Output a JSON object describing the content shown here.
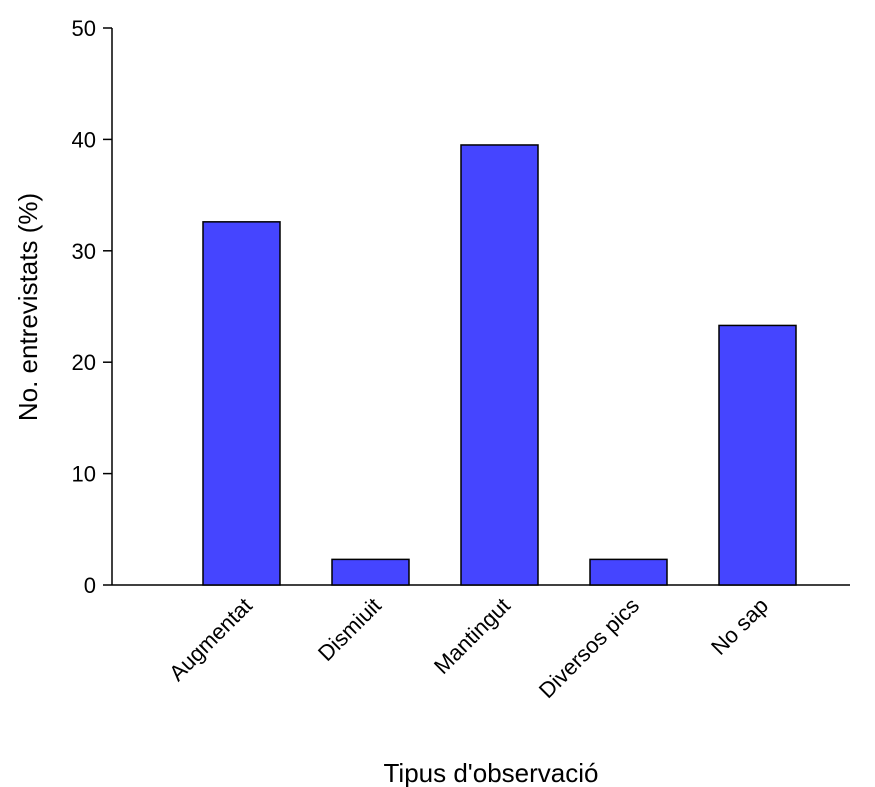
{
  "chart_data": {
    "type": "bar",
    "xlabel": "Tipus d'observació",
    "ylabel": "No. entrevistats (%)",
    "ylim": [
      0,
      50
    ],
    "yticks": [
      0,
      10,
      20,
      30,
      40,
      50
    ],
    "categories": [
      "Augmentat",
      "Dismiuit",
      "Mantingut",
      "Diversos pics",
      "No sap"
    ],
    "values": [
      32.6,
      2.3,
      39.5,
      2.3,
      23.3
    ],
    "bar_color": "#4545ff",
    "grid": false,
    "legend": "none"
  }
}
